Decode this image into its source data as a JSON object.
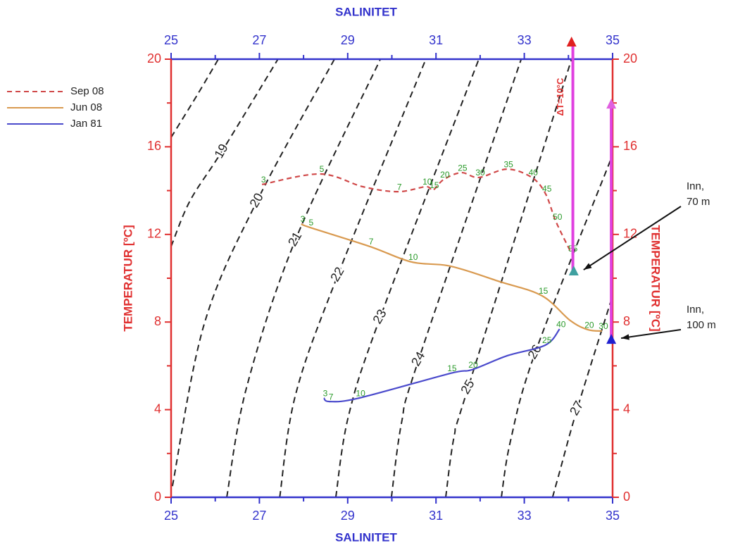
{
  "chart_data": {
    "type": "ts-diagram",
    "x_label_top": "SALINITET",
    "x_label_bottom": "SALINITET",
    "y_label_left": "TEMPERATUR [ºC]",
    "y_label_right": "TEMPERATUR [ºC]",
    "xlim": [
      25,
      35
    ],
    "ylim": [
      0,
      20
    ],
    "xticks": [
      25,
      27,
      29,
      31,
      33,
      35
    ],
    "yticks": [
      0,
      4,
      8,
      12,
      16,
      20
    ],
    "xminorticks": [
      26,
      28,
      30,
      32,
      34
    ],
    "yminorticks": [
      2,
      6,
      10,
      14,
      18
    ],
    "x_axis_color": "#3333cc",
    "y_axis_color": "#e03030",
    "depth_label_color": "#2a9a2a",
    "series": [
      {
        "name": "Sep 08",
        "color": "#d04848",
        "dashed": true,
        "x": [
          27.06,
          28.38,
          29.34,
          30.14,
          30.77,
          30.93,
          31.17,
          31.57,
          31.97,
          32.61,
          33.17,
          33.48,
          33.72,
          34.07
        ],
        "y": [
          14.28,
          14.76,
          14.18,
          13.95,
          14.18,
          14.02,
          14.5,
          14.82,
          14.6,
          14.98,
          14.6,
          13.86,
          12.57,
          11.13
        ],
        "depths": [
          3,
          5,
          null,
          7,
          10,
          15,
          20,
          25,
          30,
          35,
          40,
          45,
          50,
          55
        ]
      },
      {
        "name": "Jun 08",
        "color": "#d99a50",
        "dashed": false,
        "x": [
          27.95,
          28.14,
          29.5,
          30.45,
          31.33,
          32.45,
          33.4,
          34.04,
          34.44,
          34.76
        ],
        "y": [
          12.48,
          12.32,
          11.45,
          10.74,
          10.55,
          9.84,
          9.2,
          8.07,
          7.65,
          7.59
        ],
        "depths": [
          3,
          5,
          7,
          10,
          null,
          null,
          15,
          null,
          20,
          30
        ]
      },
      {
        "name": "Jan 81",
        "color": "#4a4acc",
        "dashed": false,
        "x": [
          28.46,
          28.59,
          29.26,
          31.33,
          31.81,
          32.61,
          33.48,
          33.8
        ],
        "y": [
          4.53,
          4.37,
          4.53,
          5.66,
          5.82,
          6.46,
          6.95,
          7.68
        ],
        "depths": [
          3,
          7,
          10,
          15,
          20,
          null,
          25,
          40
        ]
      }
    ],
    "isopycnals": {
      "color": "#222222",
      "lines": [
        {
          "label": null,
          "x": [
            25,
            25.59,
            26.07
          ],
          "y": [
            16.43,
            18.36,
            20
          ]
        },
        {
          "label": 19,
          "x": [
            25,
            25.43,
            26.15,
            27.42
          ],
          "y": [
            11.45,
            13.54,
            15.79,
            20
          ]
        },
        {
          "label": 20,
          "x": [
            25.03,
            25.75,
            26.95,
            28.7
          ],
          "y": [
            0.51,
            7.91,
            13.54,
            20
          ]
        },
        {
          "label": 21,
          "x": [
            26.26,
            26.71,
            27.82,
            29.74
          ],
          "y": [
            0,
            5.02,
            11.77,
            20
          ]
        },
        {
          "label": 22,
          "x": [
            27.46,
            27.82,
            28.78,
            30.77
          ],
          "y": [
            0,
            4.69,
            10.16,
            20
          ]
        },
        {
          "label": 23,
          "x": [
            28.73,
            29.02,
            29.74,
            31.97
          ],
          "y": [
            0,
            3.73,
            8.23,
            20
          ]
        },
        {
          "label": 24,
          "x": [
            29.99,
            30.22,
            30.61,
            32.93
          ],
          "y": [
            0,
            3.41,
            6.3,
            20
          ]
        },
        {
          "label": 25,
          "x": [
            31.22,
            31.41,
            31.73,
            34.07
          ],
          "y": [
            0,
            2.77,
            5.02,
            20
          ]
        },
        {
          "label": 26,
          "x": [
            32.48,
            32.69,
            33.25,
            35
          ],
          "y": [
            0,
            2.6,
            6.62,
            15.63
          ]
        },
        {
          "label": 27,
          "x": [
            33.64,
            33.8,
            34.2,
            35
          ],
          "y": [
            0,
            1.16,
            4.05,
            9.2
          ]
        }
      ]
    },
    "difference_bars": [
      {
        "x": 34.1,
        "y": [
          10.32,
          20.77
        ],
        "color": "#e040e0",
        "label": "ΔT=10°C"
      },
      {
        "x": 34.97,
        "y": [
          7.2,
          17.94
        ],
        "color": "#e040e0"
      }
    ],
    "markers": [
      {
        "x": 34.07,
        "y": 20.77,
        "color": "#e02020"
      },
      {
        "x": 34.97,
        "y": 17.94,
        "color": "#e060e0"
      },
      {
        "x": 34.12,
        "y": 10.32,
        "color": "#3fa0a0",
        "annotation": [
          "Inn,",
          "70 m"
        ]
      },
      {
        "x": 34.97,
        "y": 7.2,
        "color": "#2020d0",
        "annotation": [
          "Inn,",
          "100 m"
        ]
      }
    ]
  }
}
